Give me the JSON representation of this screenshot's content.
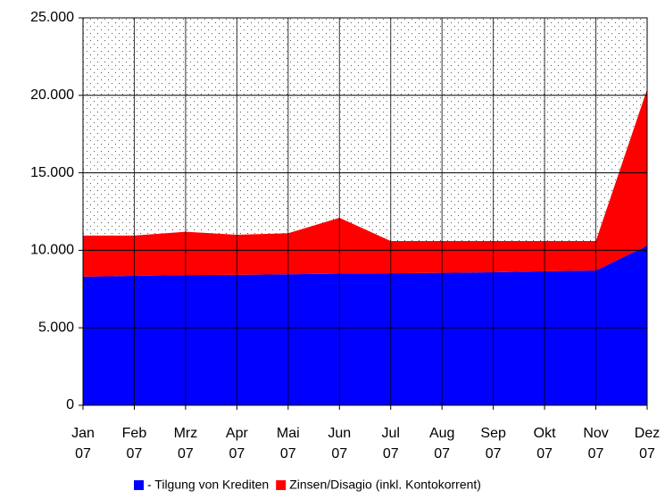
{
  "chart_data": {
    "type": "stacked_area",
    "categories": [
      "Jan 07",
      "Feb 07",
      "Mrz 07",
      "Apr 07",
      "Mai 07",
      "Jun 07",
      "Jul 07",
      "Aug 07",
      "Sep 07",
      "Okt 07",
      "Nov 07",
      "Dez 07"
    ],
    "series": [
      {
        "name": "- Tilgung von Krediten",
        "color": "#0000ff",
        "values": [
          8300,
          8350,
          8400,
          8420,
          8450,
          8500,
          8520,
          8550,
          8580,
          8650,
          8700,
          10300
        ]
      },
      {
        "name": "Zinsen/Disagio (inkl. Kontokorrent)",
        "color": "#ff0000",
        "values": [
          2650,
          2600,
          2800,
          2580,
          2650,
          3600,
          2080,
          2050,
          2020,
          1950,
          1900,
          10100
        ]
      }
    ],
    "ylim": [
      0,
      25000
    ],
    "yticks": [
      0,
      {
        "value": 5000,
        "label": "5.000"
      },
      {
        "value": 10000,
        "label": "10.000"
      },
      {
        "value": 15000,
        "label": "15.000"
      },
      {
        "value": 20000,
        "label": "20.000"
      },
      {
        "value": 25000,
        "label": "25.000"
      }
    ],
    "grid": true,
    "legend": "bottom"
  }
}
